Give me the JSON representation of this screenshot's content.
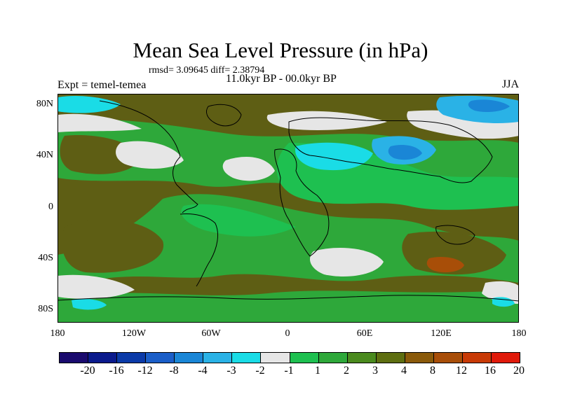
{
  "title": "Mean Sea Level Pressure (in hPa)",
  "stats": "rmsd= 3.09645 diff= 2.38794",
  "period": "11.0kyr BP - 00.0kyr BP",
  "experiment": "Expt = temel-temea",
  "season": "JJA",
  "lat_labels": [
    "80N",
    "40N",
    "0",
    "40S",
    "80S"
  ],
  "lon_labels": [
    "180",
    "120W",
    "60W",
    "0",
    "60E",
    "120E",
    "180"
  ],
  "legend": {
    "colors": [
      "#1a0a6e",
      "#0a1a8c",
      "#0a3aa8",
      "#1a5ec8",
      "#1a86d6",
      "#2ab2e6",
      "#1adce6",
      "#e6e6e6",
      "#1ec050",
      "#2ea83a",
      "#4a8a1e",
      "#5e6e10",
      "#8a5a0a",
      "#a84e08",
      "#c83a06",
      "#e01a0a"
    ],
    "labels": [
      "-20",
      "-16",
      "-12",
      "-8",
      "-4",
      "-3",
      "-2",
      "-1",
      "1",
      "2",
      "3",
      "4",
      "8",
      "12",
      "16",
      "20"
    ]
  },
  "colors": {
    "brown": "#5e5e14",
    "green_dark": "#2ea83a",
    "green_light": "#1ec050",
    "white": "#e6e6e6",
    "cyan": "#1adce6",
    "blue": "#1a86d6",
    "red": "#a84e08"
  }
}
